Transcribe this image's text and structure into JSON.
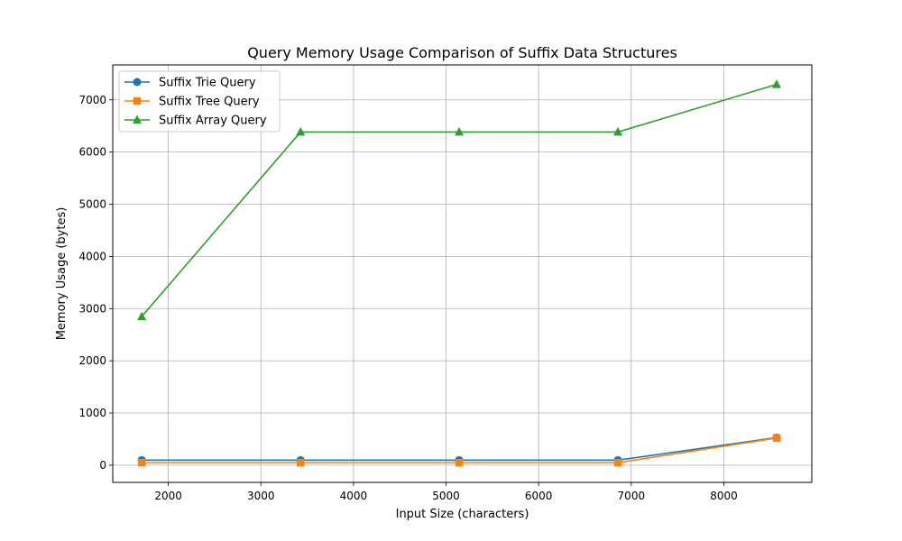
{
  "chart_data": {
    "type": "line",
    "title": "Query Memory Usage Comparison of Suffix Data Structures",
    "xlabel": "Input Size (characters)",
    "ylabel": "Memory Usage (bytes)",
    "xlim": [
      1400,
      8950
    ],
    "ylim": [
      -330,
      7670
    ],
    "xticks": [
      2000,
      3000,
      4000,
      5000,
      6000,
      7000,
      8000
    ],
    "yticks": [
      0,
      1000,
      2000,
      3000,
      4000,
      5000,
      6000,
      7000
    ],
    "grid": true,
    "legend_position": "top-left",
    "x": [
      1713,
      3428,
      5141,
      6856,
      8570
    ],
    "series": [
      {
        "name": "Suffix Trie Query",
        "values": [
          96,
          96,
          96,
          96,
          528
        ],
        "color": "#1f77b4",
        "marker": "circle"
      },
      {
        "name": "Suffix Tree Query",
        "values": [
          48,
          48,
          48,
          48,
          520
        ],
        "color": "#ff7f0e",
        "marker": "square"
      },
      {
        "name": "Suffix Array Query",
        "values": [
          2848,
          6384,
          6384,
          6384,
          7296
        ],
        "color": "#2ca02c",
        "marker": "triangle"
      }
    ]
  }
}
